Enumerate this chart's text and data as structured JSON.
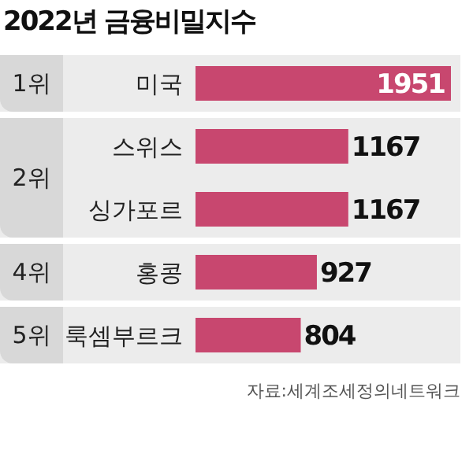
{
  "chart_data": {
    "type": "bar",
    "orientation": "horizontal",
    "title": "2022년 금융비밀지수",
    "categories": [
      "미국",
      "스위스",
      "싱가포르",
      "홍콩",
      "룩셈부르크"
    ],
    "values": [
      1951,
      1167,
      1167,
      927,
      804
    ],
    "color": "#c8476f",
    "data_labels": true,
    "grid": false,
    "legend": false,
    "annotations": [
      "1위",
      "2위",
      "4위",
      "5위",
      "자료:세계조세정의네트워크"
    ]
  }
}
